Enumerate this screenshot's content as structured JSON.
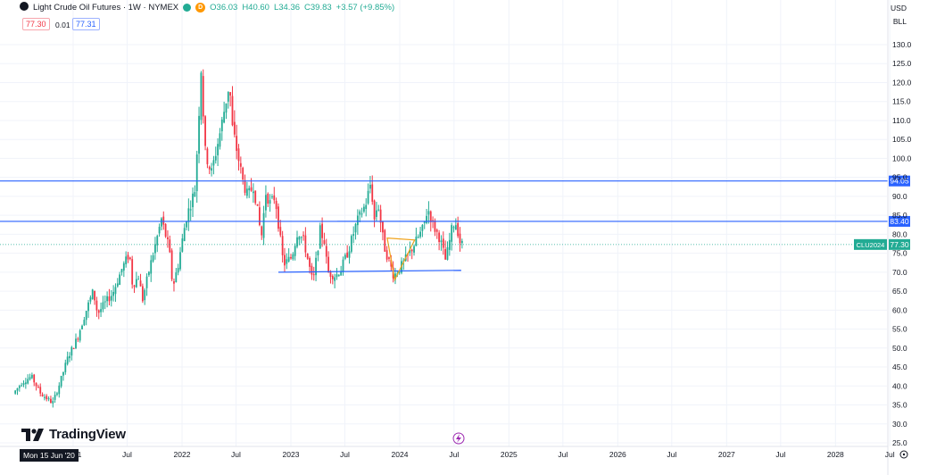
{
  "header": {
    "title": "Light Crude Oil Futures · 1W · NYMEX",
    "badge_letter": "D",
    "open": "O36.03",
    "high": "H40.60",
    "low": "L34.36",
    "close": "C39.83",
    "change": "+3.57 (+9.85%)"
  },
  "trade": {
    "sell": "77.30",
    "spread": "0.01",
    "buy": "77.31"
  },
  "currency": {
    "ccy": "USD",
    "unit": "BLL"
  },
  "watermark": "TradingView",
  "date_cursor": "Mon 15 Jun '20",
  "colors": {
    "up": "#22ab94",
    "down": "#f23645",
    "line": "#2962ff",
    "triangle": "#f0a21a",
    "grid": "#f0f3fa"
  },
  "chart_data": {
    "type": "candlestick",
    "title": "Light Crude Oil Futures · 1W · NYMEX",
    "y_axis": {
      "min": 25,
      "max": 130,
      "step": 5,
      "ticks": [
        "130.0",
        "125.0",
        "120.0",
        "115.0",
        "110.0",
        "105.0",
        "100.0",
        "95.0",
        "90.0",
        "85.0",
        "80.0",
        "75.0",
        "70.0",
        "65.0",
        "60.0",
        "55.0",
        "50.0",
        "45.0",
        "40.0",
        "35.0",
        "30.0",
        "25.0"
      ]
    },
    "x_axis": {
      "ticks": [
        {
          "label": "2021",
          "date": "2021-01-01"
        },
        {
          "label": "Jul",
          "date": "2021-07-01"
        },
        {
          "label": "2022",
          "date": "2022-01-01"
        },
        {
          "label": "Jul",
          "date": "2022-07-01"
        },
        {
          "label": "2023",
          "date": "2023-01-01"
        },
        {
          "label": "Jul",
          "date": "2023-07-01"
        },
        {
          "label": "2024",
          "date": "2024-01-01"
        },
        {
          "label": "Jul",
          "date": "2024-07-01"
        },
        {
          "label": "2025",
          "date": "2025-01-01"
        },
        {
          "label": "Jul",
          "date": "2025-07-01"
        },
        {
          "label": "2026",
          "date": "2026-01-01"
        },
        {
          "label": "Jul",
          "date": "2026-07-01"
        },
        {
          "label": "2027",
          "date": "2027-01-01"
        },
        {
          "label": "Jul",
          "date": "2027-07-01"
        },
        {
          "label": "2028",
          "date": "2028-01-01"
        },
        {
          "label": "Jul",
          "date": "2028-07-01"
        }
      ]
    },
    "series_path": [
      [
        "2020-06-15",
        38
      ],
      [
        "2020-07-15",
        41
      ],
      [
        "2020-08-15",
        42.5
      ],
      [
        "2020-09-15",
        38
      ],
      [
        "2020-10-25",
        35.5
      ],
      [
        "2020-11-15",
        40
      ],
      [
        "2020-12-15",
        47.5
      ],
      [
        "2021-01-15",
        52.5
      ],
      [
        "2021-02-15",
        60
      ],
      [
        "2021-03-10",
        65
      ],
      [
        "2021-03-25",
        59
      ],
      [
        "2021-04-20",
        62
      ],
      [
        "2021-05-15",
        64.5
      ],
      [
        "2021-06-15",
        71
      ],
      [
        "2021-07-10",
        75
      ],
      [
        "2021-07-20",
        66.5
      ],
      [
        "2021-08-10",
        69
      ],
      [
        "2021-08-22",
        62.5
      ],
      [
        "2021-09-15",
        71
      ],
      [
        "2021-10-10",
        79
      ],
      [
        "2021-10-25",
        84
      ],
      [
        "2021-11-20",
        76
      ],
      [
        "2021-12-02",
        66
      ],
      [
        "2021-12-20",
        72
      ],
      [
        "2022-01-15",
        84
      ],
      [
        "2022-02-15",
        92
      ],
      [
        "2022-03-07",
        123.7
      ],
      [
        "2022-03-20",
        102
      ],
      [
        "2022-04-10",
        96
      ],
      [
        "2022-05-10",
        107
      ],
      [
        "2022-06-10",
        120
      ],
      [
        "2022-06-20",
        108
      ],
      [
        "2022-07-10",
        100
      ],
      [
        "2022-07-25",
        94
      ],
      [
        "2022-08-10",
        90
      ],
      [
        "2022-08-30",
        93
      ],
      [
        "2022-09-25",
        79
      ],
      [
        "2022-10-10",
        91
      ],
      [
        "2022-10-25",
        88
      ],
      [
        "2022-11-10",
        90
      ],
      [
        "2022-12-08",
        72
      ],
      [
        "2023-01-05",
        74
      ],
      [
        "2023-01-25",
        81
      ],
      [
        "2023-02-15",
        78
      ],
      [
        "2023-03-17",
        67
      ],
      [
        "2023-04-10",
        81
      ],
      [
        "2023-04-25",
        78
      ],
      [
        "2023-05-05",
        70
      ],
      [
        "2023-06-01",
        69
      ],
      [
        "2023-06-20",
        71
      ],
      [
        "2023-07-15",
        76
      ],
      [
        "2023-08-10",
        83
      ],
      [
        "2023-09-10",
        88
      ],
      [
        "2023-09-27",
        93.7
      ],
      [
        "2023-10-10",
        83
      ],
      [
        "2023-10-20",
        89
      ],
      [
        "2023-11-10",
        77
      ],
      [
        "2023-12-13",
        69
      ],
      [
        "2024-01-15",
        72.5
      ],
      [
        "2024-02-10",
        76
      ],
      [
        "2024-03-20",
        81.5
      ],
      [
        "2024-04-05",
        86.9
      ],
      [
        "2024-04-25",
        82
      ],
      [
        "2024-05-15",
        79
      ],
      [
        "2024-06-04",
        73
      ],
      [
        "2024-06-25",
        81.5
      ],
      [
        "2024-07-05",
        83.5
      ],
      [
        "2024-07-12",
        82
      ],
      [
        "2024-07-22",
        78
      ],
      [
        "2024-07-28",
        77.3
      ]
    ],
    "reference_lines": [
      {
        "kind": "horizontal_ray",
        "y": 94.05,
        "label": "94.05"
      },
      {
        "kind": "horizontal_ray",
        "y": 83.4,
        "label": "83.40"
      }
    ],
    "trend_lines": [
      {
        "from": [
          "2023-06-05",
          83.4
        ],
        "to": [
          "2024-07-25",
          83.4
        ]
      },
      {
        "from": [
          "2022-11-20",
          70.0
        ],
        "to": [
          "2024-07-25",
          70.5
        ]
      }
    ],
    "triangle": {
      "a": [
        "2023-11-20",
        79
      ],
      "b": [
        "2024-02-20",
        78.5
      ],
      "c": [
        "2023-12-15",
        68
      ]
    },
    "last_price": {
      "symbol": "CLU2024",
      "value": 77.3
    }
  }
}
